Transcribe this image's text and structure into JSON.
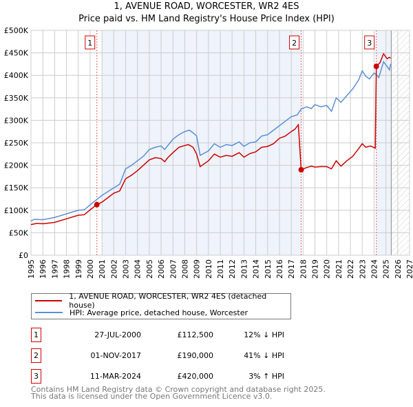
{
  "title_line1": "1, AVENUE ROAD, WORCESTER, WR2 4ES",
  "title_line2": "Price paid vs. HM Land Registry's House Price Index (HPI)",
  "chart_data": {
    "type": "line",
    "title": "1, AVENUE ROAD, WORCESTER, WR2 4ES — Price paid vs. HM Land Registry's House Price Index (HPI)",
    "xlim": [
      1995,
      2027
    ],
    "ylim": [
      0,
      500000
    ],
    "xticks": [
      "1995",
      "1996",
      "1997",
      "1998",
      "1999",
      "2000",
      "2001",
      "2002",
      "2003",
      "2004",
      "2005",
      "2006",
      "2007",
      "2008",
      "2009",
      "2010",
      "2011",
      "2012",
      "2013",
      "2014",
      "2015",
      "2016",
      "2017",
      "2018",
      "2019",
      "2020",
      "2021",
      "2022",
      "2023",
      "2024",
      "2025",
      "2026",
      "2027"
    ],
    "yticks": [
      {
        "v": 0,
        "label": "£0"
      },
      {
        "v": 50000,
        "label": "£50K"
      },
      {
        "v": 100000,
        "label": "£100K"
      },
      {
        "v": 150000,
        "label": "£150K"
      },
      {
        "v": 200000,
        "label": "£200K"
      },
      {
        "v": 250000,
        "label": "£250K"
      },
      {
        "v": 300000,
        "label": "£300K"
      },
      {
        "v": 350000,
        "label": "£350K"
      },
      {
        "v": 400000,
        "label": "£400K"
      },
      {
        "v": 450000,
        "label": "£450K"
      },
      {
        "v": 500000,
        "label": "£500K"
      }
    ],
    "grid": true,
    "series": [
      {
        "name": "1, AVENUE ROAD, WORCESTER, WR2 4ES (detached house)",
        "color": "#cc0000",
        "points": [
          [
            1995,
            68000
          ],
          [
            1995.5,
            71000
          ],
          [
            1996,
            70000
          ],
          [
            1997,
            73000
          ],
          [
            1998,
            81000
          ],
          [
            1999,
            89000
          ],
          [
            1999.5,
            90000
          ],
          [
            2000,
            101000
          ],
          [
            2000.57,
            112500
          ],
          [
            2001,
            118000
          ],
          [
            2002,
            138000
          ],
          [
            2002.5,
            143000
          ],
          [
            2003,
            170000
          ],
          [
            2003.5,
            178000
          ],
          [
            2004,
            188000
          ],
          [
            2005,
            212000
          ],
          [
            2005.5,
            217000
          ],
          [
            2006,
            215000
          ],
          [
            2006.3,
            208000
          ],
          [
            2006.6,
            218000
          ],
          [
            2007,
            228000
          ],
          [
            2007.5,
            240000
          ],
          [
            2008,
            244000
          ],
          [
            2008.3,
            246000
          ],
          [
            2008.7,
            240000
          ],
          [
            2009,
            225000
          ],
          [
            2009.3,
            197000
          ],
          [
            2010,
            210000
          ],
          [
            2010.5,
            225000
          ],
          [
            2011,
            218000
          ],
          [
            2011.5,
            222000
          ],
          [
            2012,
            220000
          ],
          [
            2012.6,
            228000
          ],
          [
            2013,
            218000
          ],
          [
            2013.5,
            226000
          ],
          [
            2014,
            230000
          ],
          [
            2014.5,
            240000
          ],
          [
            2015,
            242000
          ],
          [
            2015.5,
            248000
          ],
          [
            2016,
            260000
          ],
          [
            2016.5,
            265000
          ],
          [
            2017,
            275000
          ],
          [
            2017.3,
            280000
          ],
          [
            2017.6,
            290000
          ],
          [
            2017.84,
            190000
          ],
          [
            2018.3,
            195000
          ],
          [
            2018.7,
            198000
          ],
          [
            2019,
            196000
          ],
          [
            2019.5,
            197000
          ],
          [
            2020,
            197000
          ],
          [
            2020.4,
            192000
          ],
          [
            2020.8,
            210000
          ],
          [
            2021.2,
            198000
          ],
          [
            2021.7,
            210000
          ],
          [
            2022.2,
            220000
          ],
          [
            2022.7,
            237000
          ],
          [
            2023,
            248000
          ],
          [
            2023.3,
            240000
          ],
          [
            2023.7,
            243000
          ],
          [
            2024.1,
            238000
          ],
          [
            2024.19,
            420000
          ],
          [
            2024.5,
            428000
          ],
          [
            2024.8,
            448000
          ],
          [
            2025.1,
            437000
          ],
          [
            2025.3,
            440000
          ],
          [
            2025.4,
            438000
          ]
        ]
      },
      {
        "name": "HPI: Average price, detached house, Worcester",
        "color": "#5b8fd4",
        "points": [
          [
            1995,
            76000
          ],
          [
            1995.3,
            80000
          ],
          [
            1996,
            79000
          ],
          [
            1997,
            84000
          ],
          [
            1998,
            92000
          ],
          [
            1999,
            100000
          ],
          [
            1999.5,
            101000
          ],
          [
            2000,
            112000
          ],
          [
            2000.57,
            124000
          ],
          [
            2001,
            133000
          ],
          [
            2002,
            150000
          ],
          [
            2002.5,
            158000
          ],
          [
            2003,
            192000
          ],
          [
            2003.5,
            200000
          ],
          [
            2004,
            210000
          ],
          [
            2004.5,
            220000
          ],
          [
            2005,
            235000
          ],
          [
            2005.5,
            240000
          ],
          [
            2006,
            243000
          ],
          [
            2006.3,
            235000
          ],
          [
            2006.6,
            245000
          ],
          [
            2007,
            258000
          ],
          [
            2007.5,
            268000
          ],
          [
            2008,
            275000
          ],
          [
            2008.4,
            278000
          ],
          [
            2008.8,
            270000
          ],
          [
            2009,
            265000
          ],
          [
            2009.3,
            222000
          ],
          [
            2010,
            232000
          ],
          [
            2010.5,
            248000
          ],
          [
            2011,
            240000
          ],
          [
            2011.5,
            246000
          ],
          [
            2012,
            244000
          ],
          [
            2012.6,
            252000
          ],
          [
            2013,
            242000
          ],
          [
            2013.5,
            250000
          ],
          [
            2014,
            252000
          ],
          [
            2014.5,
            265000
          ],
          [
            2015,
            268000
          ],
          [
            2015.5,
            278000
          ],
          [
            2016,
            288000
          ],
          [
            2016.5,
            298000
          ],
          [
            2017,
            308000
          ],
          [
            2017.5,
            312000
          ],
          [
            2017.84,
            325000
          ],
          [
            2018.3,
            330000
          ],
          [
            2018.7,
            326000
          ],
          [
            2019,
            335000
          ],
          [
            2019.5,
            330000
          ],
          [
            2020,
            333000
          ],
          [
            2020.4,
            320000
          ],
          [
            2020.8,
            350000
          ],
          [
            2021.2,
            340000
          ],
          [
            2021.7,
            355000
          ],
          [
            2022.2,
            370000
          ],
          [
            2022.7,
            390000
          ],
          [
            2023,
            410000
          ],
          [
            2023.3,
            398000
          ],
          [
            2023.6,
            392000
          ],
          [
            2024,
            405000
          ],
          [
            2024.19,
            402000
          ],
          [
            2024.4,
            395000
          ],
          [
            2024.8,
            430000
          ],
          [
            2025.1,
            420000
          ],
          [
            2025.3,
            412000
          ],
          [
            2025.4,
            425000
          ]
        ]
      }
    ],
    "sales": [
      {
        "n": "1",
        "year": 2000.57,
        "price": 112500
      },
      {
        "n": "2",
        "year": 2017.84,
        "price": 190000
      },
      {
        "n": "3",
        "year": 2024.19,
        "price": 420000
      }
    ],
    "shaded": [
      [
        2001,
        2017.84
      ],
      [
        2024.19,
        2025.45
      ]
    ],
    "forecast_hatch_from": 2025.45,
    "legend_position": "below"
  },
  "legend": {
    "red": "1, AVENUE ROAD, WORCESTER, WR2 4ES (detached house)",
    "blue": "HPI: Average price, detached house, Worcester"
  },
  "table": [
    {
      "n": "1",
      "date": "27-JUL-2000",
      "price": "£112,500",
      "hpi": "12% ↓ HPI"
    },
    {
      "n": "2",
      "date": "01-NOV-2017",
      "price": "£190,000",
      "hpi": "41% ↓ HPI"
    },
    {
      "n": "3",
      "date": "11-MAR-2024",
      "price": "£420,000",
      "hpi": "3% ↑ HPI"
    }
  ],
  "footer1": "Contains HM Land Registry data © Crown copyright and database right 2025.",
  "footer2": "This data is licensed under the Open Government Licence v3.0."
}
